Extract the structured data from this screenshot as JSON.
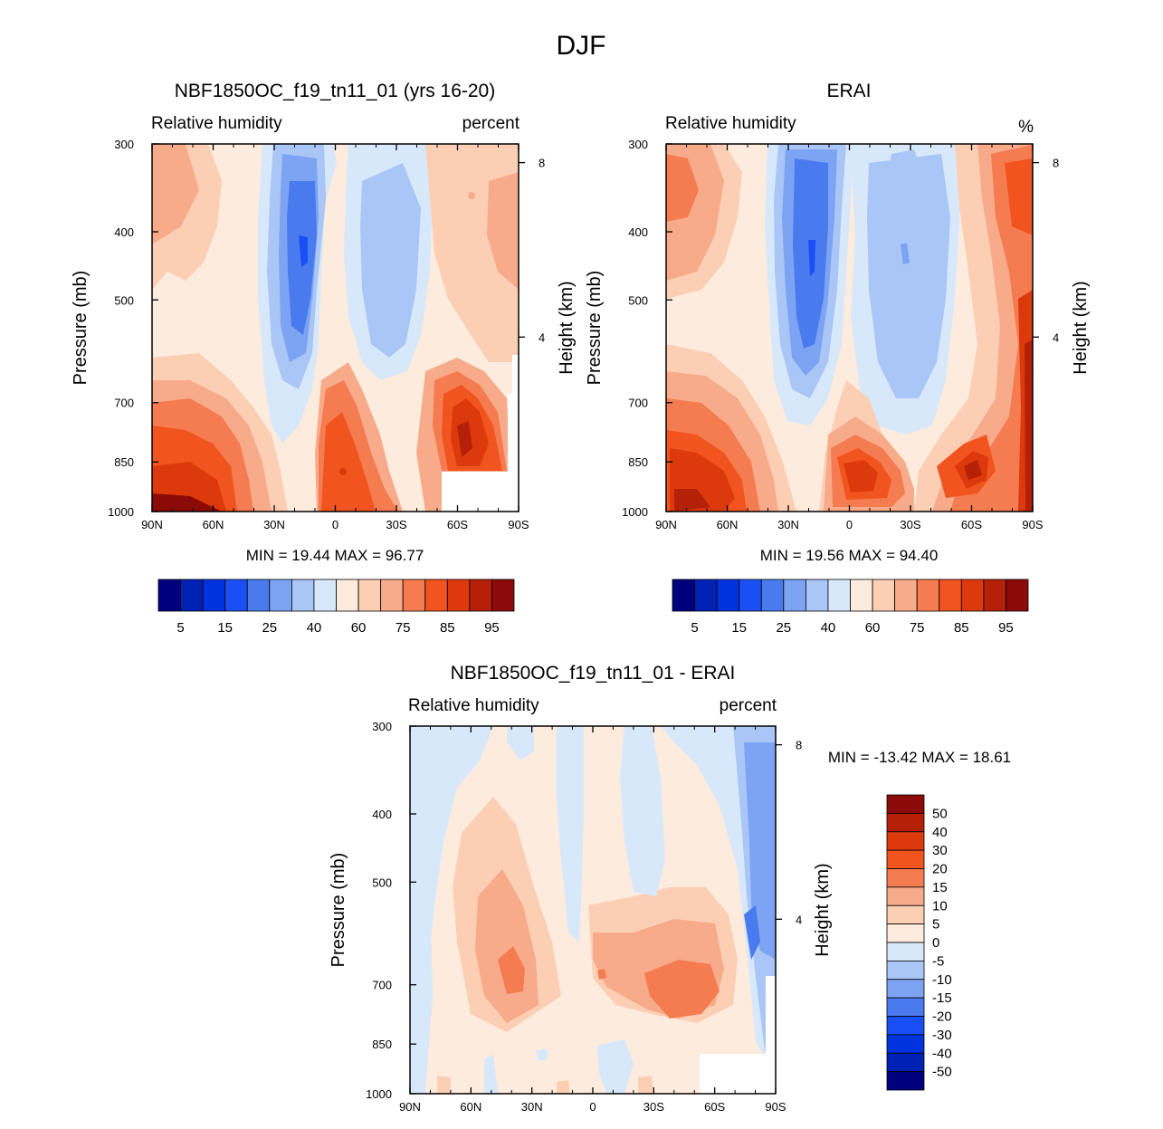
{
  "page_title": "DJF",
  "colors": {
    "abs_scale": [
      "#00007f",
      "#0022b4",
      "#0033dd",
      "#1a4ff5",
      "#4a7bee",
      "#7da3f3",
      "#a9c6f7",
      "#d8e8fb",
      "#fdebdd",
      "#fccfb5",
      "#f8ab8a",
      "#f57b51",
      "#f1541f",
      "#dc3a0c",
      "#b52008",
      "#8c0a07"
    ],
    "diff_scale": [
      "#00007f",
      "#0022b4",
      "#0033dd",
      "#1a4ff5",
      "#4a7bee",
      "#7da3f3",
      "#a9c6f7",
      "#d8e8fb",
      "#fdebdd",
      "#fccfb5",
      "#f8ab8a",
      "#f57b51",
      "#f1541f",
      "#dc3a0c",
      "#b52008",
      "#8c0a07"
    ]
  },
  "chart_data": [
    {
      "type": "heatmap",
      "title": "NBF1850OC_f19_tn11_01 (yrs 16-20)",
      "left_subtitle": "Relative humidity",
      "right_subtitle": "percent",
      "xlabel": "",
      "ylabel": "Pressure (mb)",
      "right_ylabel": "Height (km)",
      "x_ticks": [
        "90N",
        "60N",
        "30N",
        "0",
        "30S",
        "60S",
        "90S"
      ],
      "y_ticks": [
        "300",
        "400",
        "500",
        "700",
        "850",
        "1000"
      ],
      "y_values": [
        300,
        400,
        500,
        700,
        850,
        1000
      ],
      "right_ticks": [
        "8",
        "4"
      ],
      "right_values": [
        8,
        4
      ],
      "ylim": [
        1000,
        300
      ],
      "xlim": [
        90,
        -90
      ],
      "min": "19.44",
      "max": "96.77",
      "minmax_text": "MIN = 19.44  MAX = 96.77",
      "colorbar_labels": [
        "5",
        "15",
        "25",
        "40",
        "60",
        "75",
        "85",
        "95"
      ],
      "colorbar_levels": [
        5,
        10,
        15,
        20,
        25,
        30,
        40,
        50,
        60,
        70,
        75,
        80,
        85,
        90,
        95
      ],
      "series": [
        {
          "name": "rh",
          "field": "model"
        }
      ]
    },
    {
      "type": "heatmap",
      "title": "ERAI",
      "left_subtitle": "Relative humidity",
      "right_subtitle": "%",
      "xlabel": "",
      "ylabel": "Pressure (mb)",
      "right_ylabel": "Height (km)",
      "x_ticks": [
        "90N",
        "60N",
        "30N",
        "0",
        "30S",
        "60S",
        "90S"
      ],
      "y_ticks": [
        "300",
        "400",
        "500",
        "700",
        "850",
        "1000"
      ],
      "y_values": [
        300,
        400,
        500,
        700,
        850,
        1000
      ],
      "right_ticks": [
        "8",
        "4"
      ],
      "right_values": [
        8,
        4
      ],
      "ylim": [
        1000,
        300
      ],
      "xlim": [
        90,
        -90
      ],
      "min": "19.56",
      "max": "94.40",
      "minmax_text": "MIN = 19.56  MAX = 94.40",
      "colorbar_labels": [
        "5",
        "15",
        "25",
        "40",
        "60",
        "75",
        "85",
        "95"
      ],
      "colorbar_levels": [
        5,
        10,
        15,
        20,
        25,
        30,
        40,
        50,
        60,
        70,
        75,
        80,
        85,
        90,
        95
      ],
      "series": [
        {
          "name": "rh",
          "field": "obs"
        }
      ]
    },
    {
      "type": "heatmap",
      "title": "NBF1850OC_f19_tn11_01 - ERAI",
      "left_subtitle": "Relative humidity",
      "right_subtitle": "percent",
      "xlabel": "",
      "ylabel": "Pressure (mb)",
      "right_ylabel": "Height (km)",
      "x_ticks": [
        "90N",
        "60N",
        "30N",
        "0",
        "30S",
        "60S",
        "90S"
      ],
      "y_ticks": [
        "300",
        "400",
        "500",
        "700",
        "850",
        "1000"
      ],
      "y_values": [
        300,
        400,
        500,
        700,
        850,
        1000
      ],
      "right_ticks": [
        "8",
        "4"
      ],
      "right_values": [
        8,
        4
      ],
      "ylim": [
        1000,
        300
      ],
      "xlim": [
        90,
        -90
      ],
      "min": "-13.42",
      "max": "18.61",
      "minmax_text": "MIN = -13.42  MAX =  18.61",
      "colorbar_labels": [
        "50",
        "40",
        "30",
        "20",
        "15",
        "10",
        "5",
        "0",
        "-5",
        "-10",
        "-15",
        "-20",
        "-30",
        "-40",
        "-50"
      ],
      "colorbar_levels": [
        -50,
        -40,
        -30,
        -20,
        -15,
        -10,
        -5,
        0,
        5,
        10,
        15,
        20,
        30,
        40,
        50
      ],
      "series": [
        {
          "name": "rh_diff",
          "field": "diff"
        }
      ]
    }
  ]
}
